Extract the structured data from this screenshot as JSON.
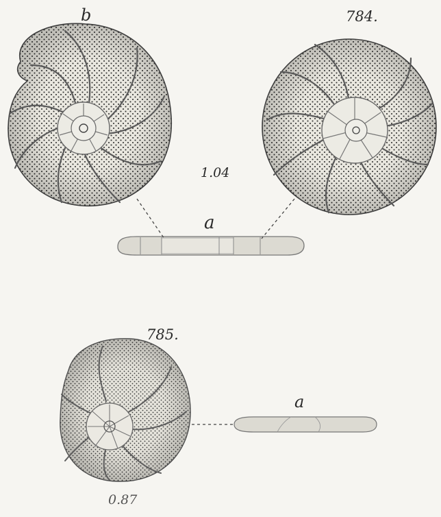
{
  "plate": {
    "figure_784": {
      "number": "784.",
      "view_b_label": "b",
      "view_a_label": "a",
      "size": "1.04"
    },
    "figure_785": {
      "number": "785.",
      "view_a_label": "a",
      "size": "0.87"
    }
  },
  "colors": {
    "paper": "#f6f5f1",
    "ink": "#2a2a2a",
    "shell_fill": "#e9e7df",
    "edge_fill": "#dcdad2"
  }
}
